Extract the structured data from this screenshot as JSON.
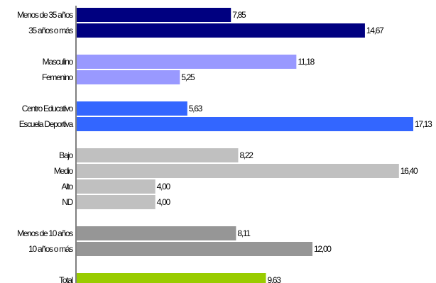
{
  "chart_data": {
    "type": "bar",
    "orientation": "horizontal",
    "xlim": [
      0,
      17.13
    ],
    "grid": false,
    "legend": "none",
    "groups": [
      {
        "color": "#000080",
        "bars": [
          {
            "category": "Menos de 35 años",
            "value": 7.85,
            "label": "7,85"
          },
          {
            "category": "35 años o más",
            "value": 14.67,
            "label": "14,67"
          }
        ]
      },
      {
        "color": "#9999FF",
        "bars": [
          {
            "category": "Masculino",
            "value": 11.18,
            "label": "11,18"
          },
          {
            "category": "Femenino",
            "value": 5.25,
            "label": "5,25"
          }
        ]
      },
      {
        "color": "#3366FF",
        "bars": [
          {
            "category": "Centro Educativo",
            "value": 5.63,
            "label": "5,63"
          },
          {
            "category": "Escuela Deportiva",
            "value": 17.13,
            "label": "17,13"
          }
        ]
      },
      {
        "color": "#C0C0C0",
        "bars": [
          {
            "category": "Bajo",
            "value": 8.22,
            "label": "8,22"
          },
          {
            "category": "Medio",
            "value": 16.4,
            "label": "16,40"
          },
          {
            "category": "Alto",
            "value": 4.0,
            "label": "4,00"
          },
          {
            "category": "ND",
            "value": 4.0,
            "label": "4,00"
          }
        ]
      },
      {
        "color": "#969696",
        "bars": [
          {
            "category": "Menos de 10 años",
            "value": 8.11,
            "label": "8,11"
          },
          {
            "category": "10 años o más",
            "value": 12.0,
            "label": "12,00"
          }
        ]
      },
      {
        "color": "#99CC00",
        "bars": [
          {
            "category": "Total",
            "value": 9.63,
            "label": "9,63"
          }
        ]
      }
    ]
  }
}
